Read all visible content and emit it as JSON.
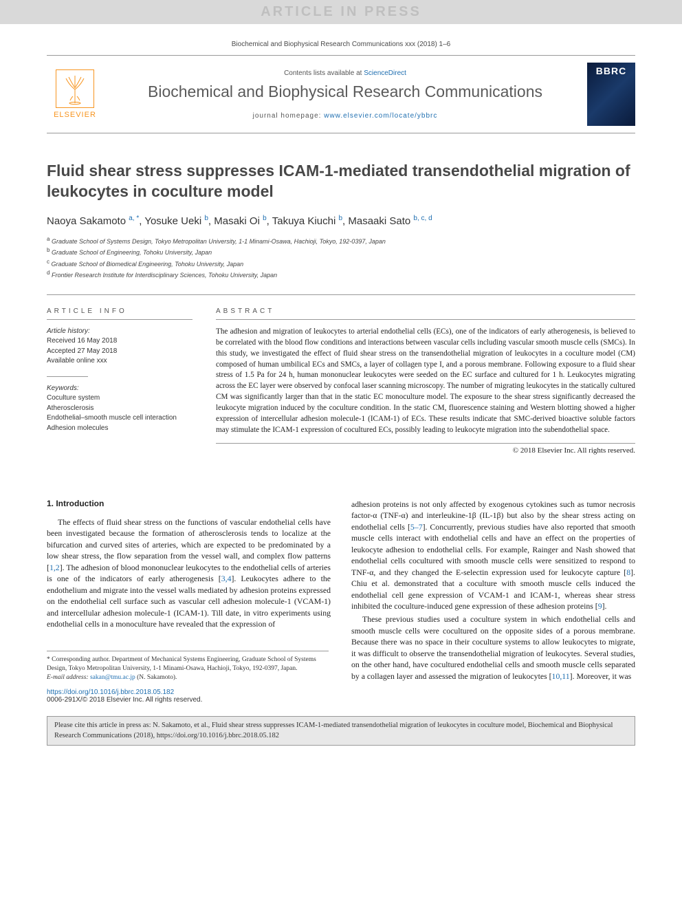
{
  "banner": "ARTICLE IN PRESS",
  "top_citation": "Biochemical and Biophysical Research Communications xxx (2018) 1–6",
  "header": {
    "contents_pre": "Contents lists available at ",
    "contents_link": "ScienceDirect",
    "journal": "Biochemical and Biophysical Research Communications",
    "homepage_pre": "journal homepage: ",
    "homepage_link": "www.elsevier.com/locate/ybbrc",
    "elsevier": "ELSEVIER",
    "cover_abbrev": "BBRC"
  },
  "title": "Fluid shear stress suppresses ICAM-1-mediated transendothelial migration of leukocytes in coculture model",
  "authors": [
    {
      "name": "Naoya Sakamoto",
      "marks": "a, *"
    },
    {
      "name": "Yosuke Ueki",
      "marks": "b"
    },
    {
      "name": "Masaki Oi",
      "marks": "b"
    },
    {
      "name": "Takuya Kiuchi",
      "marks": "b"
    },
    {
      "name": "Masaaki Sato",
      "marks": "b, c, d"
    }
  ],
  "affiliations": [
    {
      "mark": "a",
      "text": "Graduate School of Systems Design, Tokyo Metropolitan University, 1-1 Minami-Osawa, Hachioji, Tokyo, 192-0397, Japan"
    },
    {
      "mark": "b",
      "text": "Graduate School of Engineering, Tohoku University, Japan"
    },
    {
      "mark": "c",
      "text": "Graduate School of Biomedical Engineering, Tohoku University, Japan"
    },
    {
      "mark": "d",
      "text": "Frontier Research Institute for Interdisciplinary Sciences, Tohoku University, Japan"
    }
  ],
  "info": {
    "heading": "ARTICLE INFO",
    "history_label": "Article history:",
    "received": "Received 16 May 2018",
    "accepted": "Accepted 27 May 2018",
    "online": "Available online xxx",
    "keywords_label": "Keywords:",
    "keywords": [
      "Coculture system",
      "Atherosclerosis",
      "Endothelial–smooth muscle cell interaction",
      "Adhesion molecules"
    ]
  },
  "abstract": {
    "heading": "ABSTRACT",
    "text": "The adhesion and migration of leukocytes to arterial endothelial cells (ECs), one of the indicators of early atherogenesis, is believed to be correlated with the blood flow conditions and interactions between vascular cells including vascular smooth muscle cells (SMCs). In this study, we investigated the effect of fluid shear stress on the transendothelial migration of leukocytes in a coculture model (CM) composed of human umbilical ECs and SMCs, a layer of collagen type I, and a porous membrane. Following exposure to a fluid shear stress of 1.5 Pa for 24 h, human mononuclear leukocytes were seeded on the EC surface and cultured for 1 h. Leukocytes migrating across the EC layer were observed by confocal laser scanning microscopy. The number of migrating leukocytes in the statically cultured CM was significantly larger than that in the static EC monoculture model. The exposure to the shear stress significantly decreased the leukocyte migration induced by the coculture condition. In the static CM, fluorescence staining and Western blotting showed a higher expression of intercellular adhesion molecule-1 (ICAM-1) of ECs. These results indicate that SMC-derived bioactive soluble factors may stimulate the ICAM-1 expression of cocultured ECs, possibly leading to leukocyte migration into the subendothelial space.",
    "copyright": "© 2018 Elsevier Inc. All rights reserved."
  },
  "body": {
    "section_title": "1. Introduction",
    "col1_p1": "The effects of fluid shear stress on the functions of vascular endothelial cells have been investigated because the formation of atherosclerosis tends to localize at the bifurcation and curved sites of arteries, which are expected to be predominated by a low shear stress, the flow separation from the vessel wall, and complex flow patterns [1,2]. The adhesion of blood mononuclear leukocytes to the endothelial cells of arteries is one of the indicators of early atherogenesis [3,4]. Leukocytes adhere to the endothelium and migrate into the vessel walls mediated by adhesion proteins expressed on the endothelial cell surface such as vascular cell adhesion molecule-1 (VCAM-1) and intercellular adhesion molecule-1 (ICAM-1). Till date, in vitro experiments using endothelial cells in a monoculture have revealed that the expression of",
    "col2_p1": "adhesion proteins is not only affected by exogenous cytokines such as tumor necrosis factor-α (TNF-α) and interleukine-1β (IL-1β) but also by the shear stress acting on endothelial cells [5–7]. Concurrently, previous studies have also reported that smooth muscle cells interact with endothelial cells and have an effect on the properties of leukocyte adhesion to endothelial cells. For example, Rainger and Nash showed that endothelial cells cocultured with smooth muscle cells were sensitized to respond to TNF-α, and they changed the E-selectin expression used for leukocyte capture [8]. Chiu et al. demonstrated that a coculture with smooth muscle cells induced the endothelial cell gene expression of VCAM-1 and ICAM-1, whereas shear stress inhibited the coculture-induced gene expression of these adhesion proteins [9].",
    "col2_p2": "These previous studies used a coculture system in which endothelial cells and smooth muscle cells were cocultured on the opposite sides of a porous membrane. Because there was no space in their coculture systems to allow leukocytes to migrate, it was difficult to observe the transendothelial migration of leukocytes. Several studies, on the other hand, have cocultured endothelial cells and smooth muscle cells separated by a collagen layer and assessed the migration of leukocytes [10,11]. Moreover, it was"
  },
  "footnote": {
    "corr": "* Corresponding author. Department of Mechanical Systems Engineering, Graduate School of Systems Design, Tokyo Metropolitan University, 1-1 Minami-Osawa, Hachioji, Tokyo, 192-0397, Japan.",
    "email_label": "E-mail address:",
    "email": "sakan@tmu.ac.jp",
    "email_who": "(N. Sakamoto)."
  },
  "doi": {
    "url": "https://doi.org/10.1016/j.bbrc.2018.05.182",
    "issn": "0006-291X/© 2018 Elsevier Inc. All rights reserved."
  },
  "footer_cite": "Please cite this article in press as: N. Sakamoto, et al., Fluid shear stress suppresses ICAM-1-mediated transendothelial migration of leukocytes in coculture model, Biochemical and Biophysical Research Communications (2018), https://doi.org/10.1016/j.bbrc.2018.05.182",
  "colors": {
    "link": "#1e6eb0",
    "banner_bg": "#d9d9d9",
    "banner_fg": "#bfbfbf",
    "elsevier_orange": "#f7941e",
    "rule": "#999999",
    "footer_bg": "#e8e8e8"
  }
}
